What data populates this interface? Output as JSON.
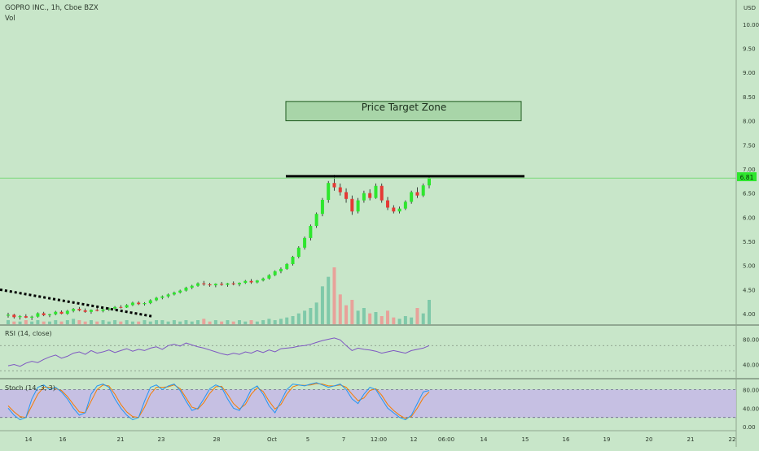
{
  "header": {
    "symbol_line": "GOPRO INC., 1h, Cboe BZX",
    "vol_label": "Vol",
    "currency": "USD"
  },
  "price_target_label": "Price Target Zone",
  "current_price_label": "6.81",
  "rsi_label": "RSI (14, close)",
  "stoch_label": "Stoch (14, 3, 3)",
  "colors": {
    "background": "#c8e6c9",
    "up": "#2ee62e",
    "down": "#e53935",
    "vol_up": "#7fc9a9",
    "vol_down": "#e8a29a",
    "rsi": "#7e57c2",
    "stoch_k": "#2196f3",
    "stoch_d": "#f57c00",
    "stoch_band": "#c5b8e8",
    "price_line": "#7dd97d",
    "target_zone_fill": "#a8d5a8"
  },
  "chart_data": [
    {
      "type": "candlestick",
      "title": "GOPRO INC., 1h, Cboe BZX",
      "y_axis_ticks": [
        "10.00",
        "9.50",
        "9.00",
        "8.50",
        "8.00",
        "7.50",
        "7.00",
        "6.50",
        "6.00",
        "5.50",
        "5.00",
        "4.50",
        "4.00"
      ],
      "ylim": [
        3.8,
        10.25
      ],
      "x_axis_ticks": [
        "14",
        "16",
        "21",
        "23",
        "28",
        "Oct",
        "5",
        "7",
        "12:00",
        "12",
        "06:00",
        "14",
        "15",
        "16",
        "19",
        "20",
        "21",
        "22"
      ],
      "price_target_zone": [
        8.0,
        8.4
      ],
      "resistance_level": 6.85,
      "trendline": {
        "from": 4.5,
        "to": 3.95
      },
      "last_price": 6.81,
      "ohlc": [
        [
          3.96,
          4.02,
          3.92,
          3.98
        ],
        [
          3.98,
          4.0,
          3.9,
          3.93
        ],
        [
          3.93,
          3.97,
          3.88,
          3.95
        ],
        [
          3.95,
          3.99,
          3.91,
          3.92
        ],
        [
          3.92,
          3.96,
          3.87,
          3.94
        ],
        [
          3.94,
          4.03,
          3.92,
          4.01
        ],
        [
          4.01,
          4.04,
          3.95,
          3.97
        ],
        [
          3.97,
          4.0,
          3.93,
          3.99
        ],
        [
          3.99,
          4.06,
          3.97,
          4.04
        ],
        [
          4.04,
          4.07,
          3.99,
          4.0
        ],
        [
          4.0,
          4.08,
          3.98,
          4.06
        ],
        [
          4.06,
          4.12,
          4.03,
          4.1
        ],
        [
          4.1,
          4.14,
          4.05,
          4.07
        ],
        [
          4.07,
          4.11,
          4.02,
          4.04
        ],
        [
          4.04,
          4.09,
          4.0,
          4.08
        ],
        [
          4.08,
          4.12,
          4.05,
          4.06
        ],
        [
          4.06,
          4.1,
          4.03,
          4.09
        ],
        [
          4.09,
          4.13,
          4.06,
          4.11
        ],
        [
          4.11,
          4.16,
          4.08,
          4.14
        ],
        [
          4.14,
          4.18,
          4.11,
          4.13
        ],
        [
          4.13,
          4.2,
          4.12,
          4.18
        ],
        [
          4.18,
          4.25,
          4.16,
          4.23
        ],
        [
          4.23,
          4.26,
          4.18,
          4.2
        ],
        [
          4.2,
          4.24,
          4.17,
          4.22
        ],
        [
          4.22,
          4.3,
          4.2,
          4.28
        ],
        [
          4.28,
          4.35,
          4.26,
          4.33
        ],
        [
          4.33,
          4.38,
          4.3,
          4.36
        ],
        [
          4.36,
          4.42,
          4.33,
          4.4
        ],
        [
          4.4,
          4.46,
          4.38,
          4.44
        ],
        [
          4.44,
          4.5,
          4.42,
          4.48
        ],
        [
          4.48,
          4.56,
          4.46,
          4.54
        ],
        [
          4.54,
          4.6,
          4.51,
          4.58
        ],
        [
          4.58,
          4.65,
          4.56,
          4.63
        ],
        [
          4.63,
          4.68,
          4.58,
          4.61
        ],
        [
          4.61,
          4.64,
          4.56,
          4.59
        ],
        [
          4.59,
          4.63,
          4.55,
          4.62
        ],
        [
          4.62,
          4.66,
          4.58,
          4.6
        ],
        [
          4.6,
          4.64,
          4.56,
          4.63
        ],
        [
          4.63,
          4.67,
          4.59,
          4.61
        ],
        [
          4.61,
          4.65,
          4.57,
          4.64
        ],
        [
          4.64,
          4.7,
          4.62,
          4.68
        ],
        [
          4.68,
          4.72,
          4.62,
          4.65
        ],
        [
          4.65,
          4.7,
          4.63,
          4.69
        ],
        [
          4.69,
          4.75,
          4.67,
          4.73
        ],
        [
          4.73,
          4.82,
          4.71,
          4.8
        ],
        [
          4.8,
          4.9,
          4.78,
          4.88
        ],
        [
          4.88,
          4.96,
          4.84,
          4.93
        ],
        [
          4.93,
          5.05,
          4.91,
          5.03
        ],
        [
          5.03,
          5.2,
          5.0,
          5.18
        ],
        [
          5.18,
          5.4,
          5.15,
          5.37
        ],
        [
          5.37,
          5.6,
          5.33,
          5.57
        ],
        [
          5.57,
          5.85,
          5.52,
          5.82
        ],
        [
          5.82,
          6.1,
          5.78,
          6.07
        ],
        [
          6.07,
          6.4,
          6.02,
          6.36
        ],
        [
          6.36,
          6.75,
          6.3,
          6.71
        ],
        [
          6.71,
          6.88,
          6.55,
          6.62
        ],
        [
          6.62,
          6.7,
          6.45,
          6.52
        ],
        [
          6.52,
          6.6,
          6.3,
          6.38
        ],
        [
          6.38,
          6.45,
          6.05,
          6.12
        ],
        [
          6.12,
          6.4,
          6.08,
          6.35
        ],
        [
          6.35,
          6.55,
          6.3,
          6.5
        ],
        [
          6.5,
          6.58,
          6.35,
          6.4
        ],
        [
          6.4,
          6.7,
          6.38,
          6.65
        ],
        [
          6.65,
          6.7,
          6.3,
          6.35
        ],
        [
          6.35,
          6.42,
          6.15,
          6.2
        ],
        [
          6.2,
          6.25,
          6.08,
          6.12
        ],
        [
          6.12,
          6.22,
          6.08,
          6.18
        ],
        [
          6.18,
          6.35,
          6.15,
          6.32
        ],
        [
          6.32,
          6.55,
          6.28,
          6.52
        ],
        [
          6.52,
          6.62,
          6.4,
          6.45
        ],
        [
          6.45,
          6.7,
          6.42,
          6.66
        ],
        [
          6.66,
          6.86,
          6.6,
          6.81
        ]
      ],
      "volume": [
        3,
        2,
        2,
        3,
        2,
        3,
        2,
        2,
        3,
        2,
        3,
        4,
        3,
        2,
        3,
        2,
        3,
        2,
        3,
        2,
        3,
        2,
        2,
        3,
        2,
        3,
        3,
        2,
        3,
        2,
        3,
        2,
        3,
        4,
        2,
        3,
        2,
        3,
        2,
        3,
        2,
        3,
        2,
        3,
        4,
        3,
        4,
        5,
        6,
        8,
        10,
        12,
        16,
        28,
        35,
        42,
        22,
        14,
        18,
        10,
        12,
        8,
        9,
        6,
        10,
        5,
        4,
        6,
        5,
        12,
        8,
        18
      ]
    },
    {
      "type": "line",
      "title": "RSI (14, close)",
      "y_axis_ticks": [
        "80.00",
        "40.00"
      ],
      "ylim": [
        20,
        100
      ],
      "levels": [
        70,
        30
      ],
      "values": [
        38,
        40,
        37,
        42,
        45,
        43,
        48,
        52,
        55,
        50,
        53,
        58,
        60,
        56,
        62,
        58,
        60,
        63,
        59,
        62,
        65,
        61,
        64,
        62,
        66,
        68,
        64,
        70,
        72,
        69,
        74,
        71,
        68,
        66,
        63,
        60,
        57,
        55,
        58,
        56,
        60,
        58,
        62,
        59,
        63,
        60,
        65,
        66,
        67,
        69,
        70,
        72,
        75,
        78,
        80,
        82,
        79,
        70,
        62,
        66,
        64,
        63,
        61,
        58,
        60,
        62,
        60,
        58,
        62,
        64,
        66,
        70
      ]
    },
    {
      "type": "line",
      "title": "Stoch (14, 3, 3)",
      "y_axis_ticks": [
        "80.00",
        "40.00",
        "0.00"
      ],
      "ylim": [
        -5,
        100
      ],
      "band": [
        20,
        80
      ],
      "k": [
        40,
        25,
        15,
        20,
        60,
        85,
        90,
        80,
        85,
        75,
        60,
        40,
        25,
        30,
        70,
        88,
        92,
        85,
        60,
        40,
        25,
        15,
        20,
        55,
        85,
        90,
        80,
        88,
        92,
        78,
        55,
        35,
        40,
        60,
        82,
        90,
        85,
        60,
        40,
        35,
        55,
        80,
        88,
        70,
        45,
        30,
        55,
        80,
        92,
        90,
        88,
        92,
        95,
        90,
        85,
        88,
        92,
        80,
        60,
        50,
        70,
        85,
        80,
        60,
        40,
        30,
        20,
        15,
        25,
        50,
        75,
        78
      ],
      "d": [
        45,
        32,
        22,
        20,
        45,
        70,
        85,
        85,
        82,
        78,
        65,
        48,
        32,
        30,
        55,
        80,
        90,
        88,
        70,
        48,
        32,
        22,
        20,
        42,
        70,
        85,
        85,
        86,
        90,
        82,
        62,
        42,
        38,
        52,
        72,
        86,
        87,
        70,
        50,
        38,
        48,
        70,
        84,
        76,
        55,
        38,
        48,
        70,
        86,
        90,
        89,
        90,
        93,
        92,
        88,
        88,
        90,
        85,
        70,
        56,
        62,
        78,
        82,
        68,
        48,
        35,
        25,
        18,
        22,
        40,
        62,
        75
      ]
    }
  ]
}
